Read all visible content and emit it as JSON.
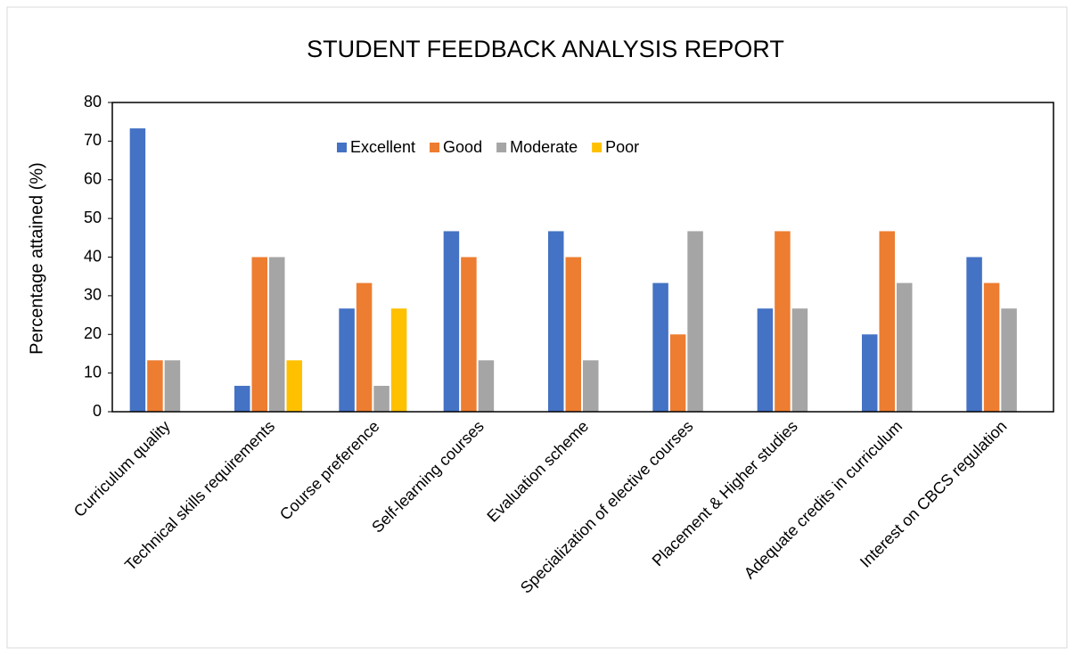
{
  "chart_data": {
    "type": "bar",
    "title": "STUDENT FEEDBACK ANALYSIS REPORT",
    "y_label": "Percentage attained (%)",
    "categories": [
      "Curriculum quality",
      "Technical skills requirements",
      "Course preference",
      "Self-learning courses",
      "Evaluation scheme",
      "Specialization of elective courses",
      "Placement & Higher studies",
      "Adequate credits in curriculum",
      "Interest on CBCS regulation"
    ],
    "series": [
      {
        "name": "Excellent",
        "color": "#4472c4",
        "values": [
          73.3,
          6.7,
          26.7,
          46.7,
          46.7,
          33.3,
          26.7,
          20,
          40
        ]
      },
      {
        "name": "Good",
        "color": "#ed7d31",
        "values": [
          13.3,
          40,
          33.3,
          40,
          40,
          20,
          46.7,
          46.7,
          33.3
        ]
      },
      {
        "name": "Moderate",
        "color": "#a5a5a5",
        "values": [
          13.3,
          40,
          6.7,
          13.3,
          13.3,
          46.7,
          26.7,
          33.3,
          26.7
        ]
      },
      {
        "name": "Poor",
        "color": "#ffc000",
        "values": [
          0,
          13.3,
          26.7,
          0,
          0,
          0,
          0,
          0,
          0
        ]
      }
    ],
    "ylim": [
      0,
      80
    ],
    "yticks": [
      0,
      10,
      20,
      30,
      40,
      50,
      60,
      70,
      80
    ],
    "grid": false,
    "legend": "top"
  }
}
